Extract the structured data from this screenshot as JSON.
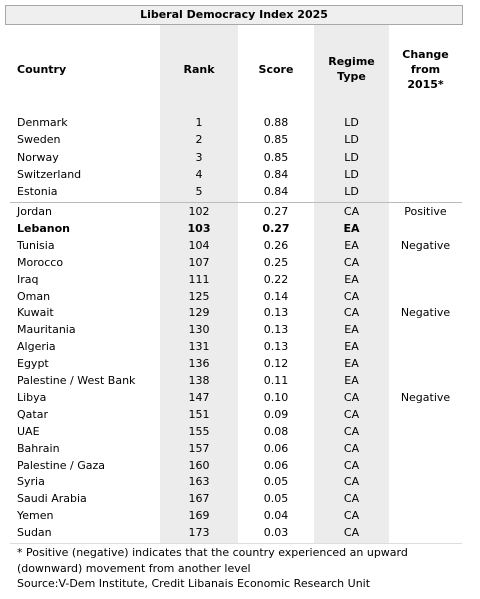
{
  "title": "Liberal Democracy Index 2025",
  "header": [
    "Country",
    "Rank",
    "Score",
    "Regime Type",
    "Change from 2015*"
  ],
  "groups": [
    [
      {
        "country": "Denmark",
        "rank": 1,
        "score": "0.88",
        "regime": "LD"
      },
      {
        "country": "Sweden",
        "rank": 2,
        "score": "0.85",
        "regime": "LD"
      },
      {
        "country": "Norway",
        "rank": 3,
        "score": "0.85",
        "regime": "LD"
      },
      {
        "country": "Switzerland",
        "rank": 4,
        "score": "0.84",
        "regime": "LD"
      },
      {
        "country": "Estonia",
        "rank": 5,
        "score": "0.84",
        "regime": "LD"
      }
    ],
    [
      {
        "country": "Jordan",
        "rank": 102,
        "score": "0.27",
        "regime": "CA",
        "change": "Positive"
      },
      {
        "country": "Lebanon",
        "rank": 103,
        "score": "0.27",
        "regime": "EA",
        "highlight": true
      },
      {
        "country": "Tunisia",
        "rank": 104,
        "score": "0.26",
        "regime": "EA",
        "change": "Negative"
      },
      {
        "country": "Morocco",
        "rank": 107,
        "score": "0.25",
        "regime": "CA"
      },
      {
        "country": "Iraq",
        "rank": 111,
        "score": "0.22",
        "regime": "EA"
      },
      {
        "country": "Oman",
        "rank": 125,
        "score": "0.14",
        "regime": "CA"
      },
      {
        "country": "Kuwait",
        "rank": 129,
        "score": "0.13",
        "regime": "CA",
        "change": "Negative"
      },
      {
        "country": "Mauritania",
        "rank": 130,
        "score": "0.13",
        "regime": "EA"
      },
      {
        "country": "Algeria",
        "rank": 131,
        "score": "0.13",
        "regime": "EA"
      },
      {
        "country": "Egypt",
        "rank": 136,
        "score": "0.12",
        "regime": "EA"
      },
      {
        "country": "Palestine / West Bank",
        "rank": 138,
        "score": "0.11",
        "regime": "EA"
      },
      {
        "country": "Libya",
        "rank": 147,
        "score": "0.10",
        "regime": "CA",
        "change": "Negative"
      },
      {
        "country": "Qatar",
        "rank": 151,
        "score": "0.09",
        "regime": "CA"
      },
      {
        "country": "UAE",
        "rank": 155,
        "score": "0.08",
        "regime": "CA"
      },
      {
        "country": "Bahrain",
        "rank": 157,
        "score": "0.06",
        "regime": "CA"
      },
      {
        "country": "Palestine / Gaza",
        "rank": 160,
        "score": "0.06",
        "regime": "CA"
      },
      {
        "country": "Syria",
        "rank": 163,
        "score": "0.05",
        "regime": "CA"
      },
      {
        "country": "Saudi Arabia",
        "rank": 167,
        "score": "0.05",
        "regime": "CA"
      },
      {
        "country": "Yemen",
        "rank": 169,
        "score": "0.04",
        "regime": "CA"
      },
      {
        "country": "Sudan",
        "rank": 173,
        "score": "0.03",
        "regime": "CA"
      }
    ]
  ],
  "footnote": [
    "* Positive (negative) indicates that the country experienced an upward",
    "(downward) movement from another level"
  ],
  "source": "Source:V-Dem Institute, Credit Libanais Economic Research Unit"
}
